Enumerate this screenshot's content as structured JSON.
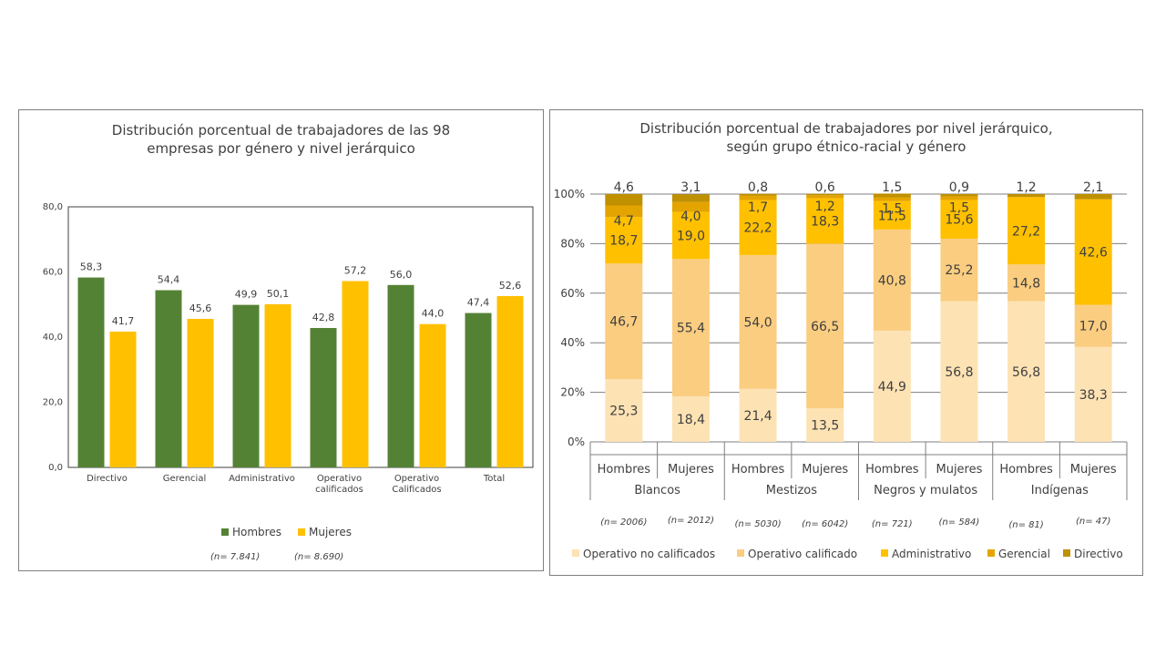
{
  "chart_data": [
    {
      "type": "bar",
      "title_line1": "Distribución porcentual de trabajadores de las 98",
      "title_line2": "empresas por género y nivel jerárquico",
      "categories": [
        "Directivo",
        "Gerencial",
        "Administrativo",
        "Operativo calificados",
        "Operativo Calificados",
        "Total"
      ],
      "category_lines": [
        [
          "Directivo"
        ],
        [
          "Gerencial"
        ],
        [
          "Administrativo"
        ],
        [
          "Operativo",
          "calificados"
        ],
        [
          "Operativo",
          "Calificados"
        ],
        [
          "Total"
        ]
      ],
      "series": [
        {
          "name": "Hombres",
          "color": "#548235",
          "values": [
            58.3,
            54.4,
            49.9,
            42.8,
            56.0,
            47.4
          ],
          "labels": [
            "58,3",
            "54,4",
            "49,9",
            "42,8",
            "56,0",
            "47,4"
          ]
        },
        {
          "name": "Mujeres",
          "color": "#ffc000",
          "values": [
            41.7,
            45.6,
            50.1,
            57.2,
            44.0,
            52.6
          ],
          "labels": [
            "41,7",
            "45,6",
            "50,1",
            "57,2",
            "44,0",
            "52,6"
          ]
        }
      ],
      "ylim": [
        0,
        80
      ],
      "yticks": [
        "0,0",
        "20,0",
        "40,0",
        "60,0",
        "80,0"
      ],
      "legend_position": "bottom",
      "notes": [
        "(n= 7.841)",
        "(n= 8.690)"
      ]
    },
    {
      "type": "bar",
      "stacked": true,
      "title_line1": "Distribución porcentual de trabajadores por nivel jerárquico,",
      "title_line2": "según grupo étnico-racial y género",
      "categories": [
        "Hombres",
        "Mujeres",
        "Hombres",
        "Mujeres",
        "Hombres",
        "Mujeres",
        "Hombres",
        "Mujeres"
      ],
      "groups": [
        "Blancos",
        "Mestizos",
        "Negros y mulatos",
        "Indígenas"
      ],
      "n_labels": [
        "(n= 2006)",
        "(n= 2012)",
        "(n= 5030)",
        "(n= 6042)",
        "(n= 721)",
        "(n= 584)",
        "(n= 81)",
        "(n= 47)"
      ],
      "series": [
        {
          "name": "Operativo no calificados",
          "color": "#fde2b4",
          "values": [
            25.3,
            18.4,
            21.4,
            13.5,
            44.9,
            56.8,
            56.8,
            38.3
          ],
          "labels": [
            "25,3",
            "18,4",
            "21,4",
            "13,5",
            "44,9",
            "56,8",
            "56,8",
            "38,3"
          ]
        },
        {
          "name": "Operativo calificado",
          "color": "#fbcd80",
          "values": [
            46.7,
            55.4,
            54.0,
            66.5,
            40.8,
            25.2,
            14.8,
            17.0
          ],
          "labels": [
            "46,7",
            "55,4",
            "54,0",
            "66,5",
            "40,8",
            "25,2",
            "14,8",
            "17,0"
          ]
        },
        {
          "name": "Administrativo",
          "color": "#ffc000",
          "values": [
            18.7,
            19.0,
            22.2,
            18.3,
            11.5,
            15.6,
            27.2,
            42.6
          ],
          "labels": [
            "18,7",
            "19,0",
            "22,2",
            "18,3",
            "11,5",
            "15,6",
            "27,2",
            "42,6"
          ]
        },
        {
          "name": "Gerencial",
          "color": "#e4a400",
          "values": [
            4.7,
            4.0,
            1.7,
            1.2,
            1.5,
            1.5,
            0.0,
            0.0
          ],
          "labels": [
            "4,7",
            "4,0",
            "1,7",
            "1,2",
            "1,5",
            "1,5",
            "",
            ""
          ]
        },
        {
          "name": "Directivo",
          "color": "#bf9000",
          "values": [
            4.6,
            3.1,
            0.8,
            0.6,
            1.5,
            0.9,
            1.2,
            2.1
          ],
          "labels": [
            "4,6",
            "3,1",
            "0,8",
            "0,6",
            "1,5",
            "0,9",
            "1,2",
            "2,1"
          ]
        }
      ],
      "ylim": [
        0,
        100
      ],
      "yticks": [
        "0%",
        "20%",
        "40%",
        "60%",
        "80%",
        "100%"
      ],
      "legend_position": "bottom"
    }
  ]
}
